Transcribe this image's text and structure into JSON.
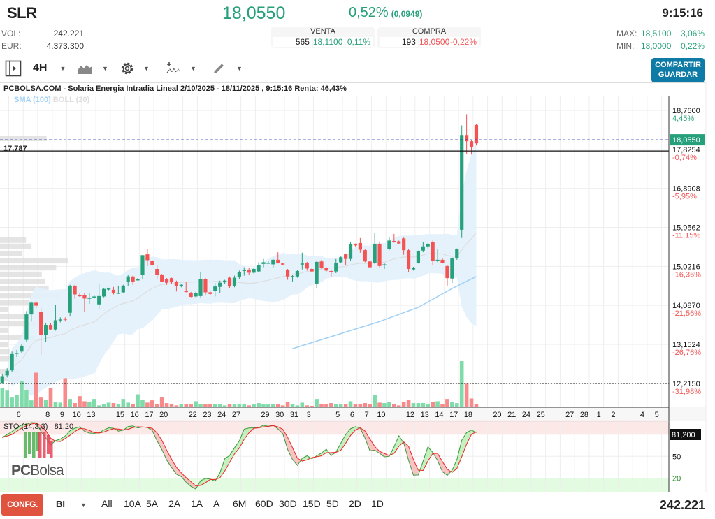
{
  "header": {
    "ticker": "SLR",
    "price": "18,0550",
    "change_pct": "0,52%",
    "change_abs": "(0,0949)",
    "time": "9:15:16",
    "vol_label": "VOL:",
    "vol_value": "242.221",
    "eur_label": "EUR:",
    "eur_value": "4.373.300",
    "venta": {
      "label": "VENTA",
      "qty": "565",
      "price": "18,1100",
      "pct": "0,11%"
    },
    "compra": {
      "label": "COMPRA",
      "qty": "193",
      "price": "18,0500",
      "pct": "-0,22%"
    },
    "max_label": "MAX:",
    "max_value": "18,5100",
    "max_pct": "3,06%",
    "min_label": "MIN:",
    "min_value": "18,0000",
    "min_pct": "0,22%"
  },
  "toolbar": {
    "interval": "4H",
    "share_label": "COMPARTIR",
    "save_label": "GUARDAR",
    "icons": [
      "panel-toggle-icon",
      "chart-type-icon",
      "gear-icon",
      "indicator-icon",
      "pencil-icon"
    ]
  },
  "chart": {
    "title": "PCBOLSA.COM - Solaria Energia Intradia Lineal 2/10/2025 - 18/11/2025 , 9:15:16 Renta: 46,43%",
    "legend": [
      {
        "label": "SMA (100)",
        "color": "#9fd0f5"
      },
      {
        "label": "BOLL (20)",
        "color": "#dddddd"
      }
    ],
    "left_level_label": "17,787",
    "logo": "PCBolsa"
  },
  "chart_data": {
    "type": "candlestick",
    "interval": "4H",
    "colors": {
      "up": "#26a17b",
      "down": "#f55353",
      "vol_up": "#7fdcaa",
      "vol_down": "#f78a8a",
      "band": "#e2f1fc",
      "sma": "#9fd0f5"
    },
    "y_axis": {
      "range": [
        12.0,
        19.0
      ],
      "ticks": [
        {
          "value": 18.76,
          "label": "18,7600",
          "pct": "4,45%"
        },
        {
          "value": 17.8254,
          "label": "17,8254",
          "pct": "-0,74%"
        },
        {
          "value": 16.8908,
          "label": "16,8908",
          "pct": "-5,95%"
        },
        {
          "value": 15.9562,
          "label": "15,9562",
          "pct": "-11,15%"
        },
        {
          "value": 15.0216,
          "label": "15,0216",
          "pct": "-16,36%"
        },
        {
          "value": 14.087,
          "label": "14,0870",
          "pct": "-21,56%"
        },
        {
          "value": 13.1524,
          "label": "13,1524",
          "pct": "-26,76%"
        },
        {
          "value": 12.215,
          "label": "12,2150",
          "pct": "-31,98%"
        }
      ]
    },
    "current_price": {
      "value": 18.055,
      "label": "18,0550"
    },
    "reference_line": 17.787,
    "low_line": 12.215,
    "x_ticks": [
      {
        "label": "6",
        "day": 0
      },
      {
        "label": "8",
        "day": 2
      },
      {
        "label": "9",
        "day": 3
      },
      {
        "label": "10",
        "day": 4
      },
      {
        "label": "13",
        "day": 5
      },
      {
        "label": "15",
        "day": 7
      },
      {
        "label": "16",
        "day": 8
      },
      {
        "label": "17",
        "day": 9
      },
      {
        "label": "20",
        "day": 10
      },
      {
        "label": "22",
        "day": 12
      },
      {
        "label": "23",
        "day": 13
      },
      {
        "label": "24",
        "day": 14
      },
      {
        "label": "27",
        "day": 15
      },
      {
        "label": "29",
        "day": 17
      },
      {
        "label": "30",
        "day": 18
      },
      {
        "label": "31",
        "day": 19
      },
      {
        "label": "3",
        "day": 20
      },
      {
        "label": "5",
        "day": 22
      },
      {
        "label": "6",
        "day": 23
      },
      {
        "label": "7",
        "day": 24
      },
      {
        "label": "10",
        "day": 25
      },
      {
        "label": "12",
        "day": 27
      },
      {
        "label": "13",
        "day": 28
      },
      {
        "label": "14",
        "day": 29
      },
      {
        "label": "17",
        "day": 30
      },
      {
        "label": "18",
        "day": 31
      },
      {
        "label": "20",
        "day": 33
      },
      {
        "label": "21",
        "day": 34
      },
      {
        "label": "24",
        "day": 35
      },
      {
        "label": "25",
        "day": 36
      },
      {
        "label": "27",
        "day": 38
      },
      {
        "label": "28",
        "day": 39
      },
      {
        "label": "1",
        "day": 40
      },
      {
        "label": "2",
        "day": 41
      },
      {
        "label": "4",
        "day": 43
      },
      {
        "label": "5",
        "day": 44
      }
    ],
    "candles_ohlc": [
      [
        12.23,
        12.45,
        12.2,
        12.39
      ],
      [
        12.41,
        12.58,
        12.36,
        12.52
      ],
      [
        12.53,
        12.98,
        12.5,
        12.92
      ],
      [
        12.93,
        13.02,
        12.85,
        12.95
      ],
      [
        12.98,
        13.16,
        12.94,
        13.12
      ],
      [
        13.26,
        13.95,
        13.22,
        13.87
      ],
      [
        13.87,
        14.18,
        13.7,
        14.15
      ],
      [
        14.15,
        14.18,
        14.02,
        14.08
      ],
      [
        13.93,
        14.03,
        12.9,
        13.37
      ],
      [
        13.37,
        13.66,
        13.22,
        13.62
      ],
      [
        13.62,
        13.66,
        13.49,
        13.51
      ],
      [
        13.51,
        14.1,
        13.48,
        13.73
      ],
      [
        13.74,
        13.8,
        13.68,
        13.75
      ],
      [
        13.77,
        13.8,
        13.7,
        13.76
      ],
      [
        13.91,
        14.58,
        13.82,
        14.56
      ],
      [
        14.56,
        14.58,
        14.25,
        14.35
      ],
      [
        14.33,
        14.37,
        14.29,
        14.31
      ],
      [
        14.33,
        14.38,
        13.94,
        14.25
      ],
      [
        14.26,
        14.38,
        14.12,
        14.27
      ],
      [
        14.29,
        14.33,
        14.25,
        14.3
      ],
      [
        14.11,
        14.6,
        14.0,
        14.31
      ],
      [
        14.3,
        14.5,
        14.28,
        14.48
      ],
      [
        14.48,
        14.51,
        14.45,
        14.49
      ],
      [
        14.46,
        14.53,
        14.35,
        14.39
      ],
      [
        14.38,
        14.56,
        14.36,
        14.39
      ],
      [
        14.4,
        14.58,
        14.38,
        14.56
      ],
      [
        14.66,
        14.82,
        14.56,
        14.78
      ],
      [
        14.78,
        14.8,
        14.58,
        14.66
      ],
      [
        14.7,
        14.74,
        14.68,
        14.71
      ],
      [
        14.82,
        15.29,
        14.72,
        15.29
      ],
      [
        15.31,
        15.43,
        15.03,
        15.17
      ],
      [
        15.15,
        15.17,
        15.04,
        15.06
      ],
      [
        14.96,
        15.05,
        14.72,
        14.82
      ],
      [
        14.82,
        14.84,
        14.66,
        14.66
      ],
      [
        14.72,
        14.74,
        14.58,
        14.63
      ],
      [
        14.74,
        14.75,
        14.6,
        14.64
      ],
      [
        14.66,
        14.68,
        14.42,
        14.55
      ],
      [
        14.56,
        14.59,
        14.52,
        14.58
      ],
      [
        14.43,
        14.64,
        14.4,
        14.42
      ],
      [
        14.39,
        14.41,
        14.28,
        14.29
      ],
      [
        14.3,
        14.41,
        14.28,
        14.39
      ],
      [
        14.31,
        14.89,
        14.28,
        14.72
      ],
      [
        14.72,
        14.74,
        14.33,
        14.4
      ],
      [
        14.4,
        14.42,
        14.34,
        14.36
      ],
      [
        14.43,
        14.62,
        14.3,
        14.54
      ],
      [
        14.53,
        14.68,
        14.38,
        14.63
      ],
      [
        14.64,
        14.7,
        14.6,
        14.68
      ],
      [
        14.75,
        14.78,
        14.5,
        14.54
      ],
      [
        14.56,
        14.8,
        14.52,
        14.75
      ],
      [
        14.76,
        14.92,
        14.72,
        14.88
      ],
      [
        14.91,
        15.0,
        14.8,
        14.94
      ],
      [
        14.94,
        14.98,
        14.82,
        14.87
      ],
      [
        14.87,
        14.98,
        14.85,
        14.96
      ],
      [
        14.9,
        15.12,
        14.88,
        15.06
      ],
      [
        15.08,
        15.2,
        15.0,
        15.12
      ],
      [
        15.11,
        15.14,
        15.09,
        15.11
      ],
      [
        15.07,
        15.2,
        14.98,
        15.18
      ],
      [
        15.18,
        15.36,
        15.09,
        15.1
      ],
      [
        15.09,
        15.11,
        15.06,
        15.07
      ],
      [
        14.94,
        14.96,
        14.7,
        14.78
      ],
      [
        14.78,
        14.82,
        14.66,
        14.79
      ],
      [
        14.78,
        14.93,
        14.75,
        14.91
      ],
      [
        15.07,
        15.35,
        14.95,
        15.09
      ],
      [
        15.11,
        15.13,
        14.92,
        14.97
      ],
      [
        14.96,
        14.98,
        14.88,
        14.9
      ],
      [
        14.61,
        15.14,
        14.49,
        15.13
      ],
      [
        15.14,
        15.18,
        14.96,
        14.98
      ],
      [
        14.98,
        15.0,
        14.9,
        14.92
      ],
      [
        14.91,
        14.94,
        14.78,
        14.9
      ],
      [
        14.9,
        15.2,
        14.86,
        15.11
      ],
      [
        15.12,
        15.26,
        15.1,
        15.24
      ],
      [
        15.31,
        15.33,
        15.05,
        15.2
      ],
      [
        15.2,
        15.6,
        15.15,
        15.55
      ],
      [
        15.55,
        15.57,
        15.5,
        15.54
      ],
      [
        15.58,
        15.7,
        15.35,
        15.42
      ],
      [
        15.41,
        15.43,
        15.12,
        15.14
      ],
      [
        15.14,
        15.16,
        14.98,
        15.0
      ],
      [
        15.1,
        15.83,
        15.08,
        15.56
      ],
      [
        15.56,
        15.62,
        15.0,
        15.03
      ],
      [
        15.05,
        15.1,
        14.96,
        15.07
      ],
      [
        15.43,
        15.72,
        15.41,
        15.64
      ],
      [
        15.63,
        15.8,
        15.59,
        15.62
      ],
      [
        15.62,
        15.64,
        15.55,
        15.57
      ],
      [
        15.69,
        15.71,
        15.3,
        15.41
      ],
      [
        15.41,
        15.43,
        14.88,
        14.96
      ],
      [
        14.95,
        15.01,
        14.92,
        14.99
      ],
      [
        15.11,
        15.4,
        15.09,
        15.38
      ],
      [
        15.4,
        15.6,
        15.36,
        15.5
      ],
      [
        15.5,
        15.58,
        15.45,
        15.56
      ],
      [
        15.61,
        15.64,
        15.05,
        15.16
      ],
      [
        15.17,
        15.43,
        15.12,
        15.18
      ],
      [
        15.18,
        15.22,
        15.09,
        15.11
      ],
      [
        15.03,
        15.05,
        14.56,
        14.74
      ],
      [
        14.73,
        15.24,
        14.62,
        15.21
      ],
      [
        15.22,
        15.45,
        15.18,
        15.43
      ],
      [
        15.9,
        18.4,
        15.7,
        18.17
      ],
      [
        18.17,
        18.67,
        17.71,
        18.02
      ],
      [
        18.02,
        18.04,
        17.7,
        17.88
      ],
      [
        18.41,
        18.43,
        17.92,
        17.97
      ]
    ],
    "volume_pct_of_max": [
      42,
      36,
      21,
      27,
      57,
      37,
      15,
      75,
      21,
      16,
      42,
      12,
      10,
      63,
      18,
      9,
      24,
      13,
      12,
      18,
      4,
      6,
      10,
      9,
      7,
      18,
      10,
      7,
      28,
      16,
      10,
      15,
      6,
      22,
      9,
      7,
      4,
      7,
      6,
      6,
      13,
      7,
      6,
      7,
      7,
      6,
      4,
      6,
      6,
      7,
      7,
      4,
      6,
      9,
      6,
      6,
      6,
      7,
      4,
      12,
      6,
      4,
      10,
      4,
      3,
      18,
      7,
      7,
      9,
      7,
      6,
      7,
      13,
      6,
      7,
      9,
      6,
      27,
      10,
      9,
      12,
      7,
      4,
      12,
      16,
      9,
      9,
      9,
      6,
      12,
      13,
      7,
      18,
      12,
      9,
      100,
      51,
      19,
      7
    ],
    "sma100_points": [
      [
        60,
        13.05
      ],
      [
        78,
        13.7
      ],
      [
        86,
        14.04
      ],
      [
        93,
        14.49
      ],
      [
        98,
        14.78
      ]
    ],
    "bollinger_period": 20,
    "volume_profile": [
      [
        18.09,
        0.68
      ],
      [
        15.65,
        0.38
      ],
      [
        15.5,
        0.46
      ],
      [
        15.33,
        0.32
      ],
      [
        15.16,
        1.0
      ],
      [
        14.99,
        0.82
      ],
      [
        14.83,
        0.61
      ],
      [
        14.66,
        0.66
      ],
      [
        14.49,
        0.71
      ],
      [
        14.32,
        0.88
      ],
      [
        14.15,
        0.43
      ],
      [
        13.99,
        0.12
      ],
      [
        13.82,
        0.43
      ],
      [
        13.65,
        0.52
      ],
      [
        13.49,
        0.12
      ],
      [
        13.32,
        0.51
      ],
      [
        13.15,
        0.12
      ],
      [
        12.98,
        0.14
      ],
      [
        12.81,
        0.26
      ],
      [
        12.5,
        0.31
      ],
      [
        12.33,
        0.33
      ]
    ],
    "stochastic": {
      "label": "STO (14,3,3)",
      "value": "81,20",
      "axis_value": "81,200",
      "levels": [
        "50",
        "20"
      ],
      "overbought": 80,
      "oversold": 20
    }
  },
  "bottom": {
    "config_label": "CONFG.",
    "scale_label": "BI",
    "ranges": [
      "All",
      "10A",
      "5A",
      "2A",
      "1A",
      "A",
      "6M",
      "60D",
      "30D",
      "15D",
      "5D",
      "2D",
      "1D"
    ],
    "volume_total": "242.221"
  }
}
